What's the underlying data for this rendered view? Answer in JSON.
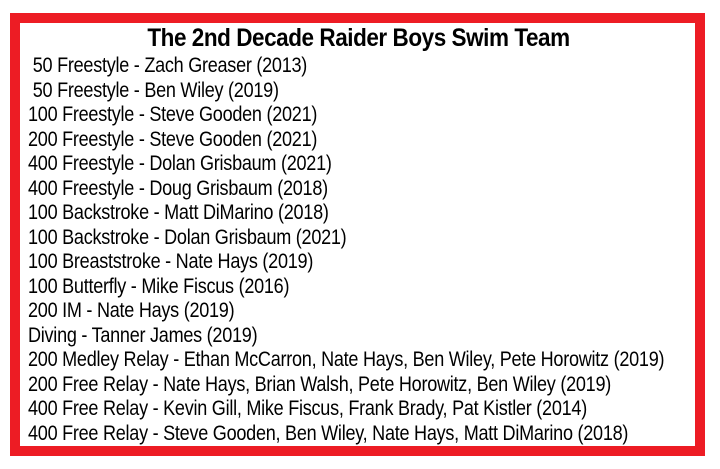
{
  "colors": {
    "border": "#ed1c24",
    "text": "#000000",
    "background": "#ffffff"
  },
  "title": "The 2nd Decade Raider Boys Swim Team",
  "records": [
    " 50 Freestyle - Zach Greaser (2013)",
    " 50 Freestyle - Ben Wiley (2019)",
    "100 Freestyle - Steve Gooden (2021)",
    "200 Freestyle - Steve Gooden (2021)",
    "400 Freestyle - Dolan Grisbaum (2021)",
    "400 Freestyle - Doug Grisbaum (2018)",
    "100 Backstroke - Matt DiMarino (2018)",
    "100 Backstroke - Dolan Grisbaum (2021)",
    "100 Breaststroke - Nate Hays (2019)",
    "100 Butterfly - Mike Fiscus (2016)",
    "200 IM - Nate Hays (2019)",
    "Diving - Tanner James (2019)",
    "200 Medley Relay - Ethan McCarron, Nate Hays, Ben Wiley, Pete Horowitz (2019)",
    "200 Free Relay - Nate Hays, Brian Walsh, Pete Horowitz, Ben Wiley (2019)",
    "400 Free Relay - Kevin Gill, Mike Fiscus, Frank Brady, Pat Kistler (2014)",
    "400 Free Relay - Steve Gooden, Ben Wiley, Nate Hays, Matt DiMarino (2018)"
  ]
}
